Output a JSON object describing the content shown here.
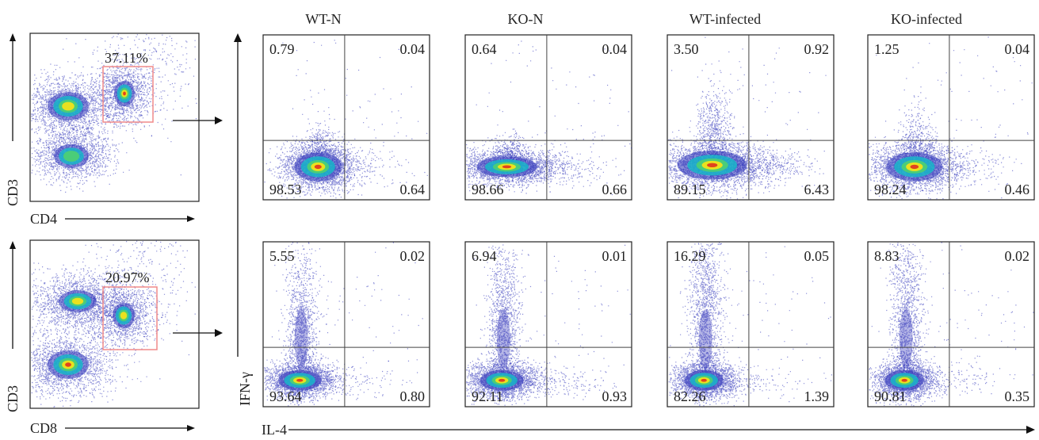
{
  "columns": [
    "WT-N",
    "KO-N",
    "WT-infected",
    "KO-infected"
  ],
  "axes": {
    "gate_y": "CD3",
    "gate_x_top": "CD4",
    "gate_x_bottom": "CD8",
    "y_main": "IFN-γ",
    "x_main": "IL-4"
  },
  "gating": {
    "cd4_percent": "37.11%",
    "cd8_percent": "20.97%"
  },
  "rows": [
    {
      "population": "CD4",
      "panels": [
        {
          "ul": "0.79",
          "ur": "0.04",
          "ll": "98.53",
          "lr": "0.64"
        },
        {
          "ul": "0.64",
          "ur": "0.04",
          "ll": "98.66",
          "lr": "0.66"
        },
        {
          "ul": "3.50",
          "ur": "0.92",
          "ll": "89.15",
          "lr": "6.43"
        },
        {
          "ul": "1.25",
          "ur": "0.04",
          "ll": "98.24",
          "lr": "0.46"
        }
      ]
    },
    {
      "population": "CD8",
      "panels": [
        {
          "ul": "5.55",
          "ur": "0.02",
          "ll": "93.64",
          "lr": "0.80"
        },
        {
          "ul": "6.94",
          "ur": "0.01",
          "ll": "92.11",
          "lr": "0.93"
        },
        {
          "ul": "16.29",
          "ur": "0.05",
          "ll": "82.26",
          "lr": "1.39"
        },
        {
          "ul": "8.83",
          "ur": "0.02",
          "ll": "90.81",
          "lr": "0.35"
        }
      ]
    }
  ],
  "colors": {
    "density_low": "#2a2fb8",
    "density_mid": "#19b6c9",
    "density_high": "#f2e21a",
    "density_peak": "#e03a1e",
    "gate": "#f08a8a"
  }
}
